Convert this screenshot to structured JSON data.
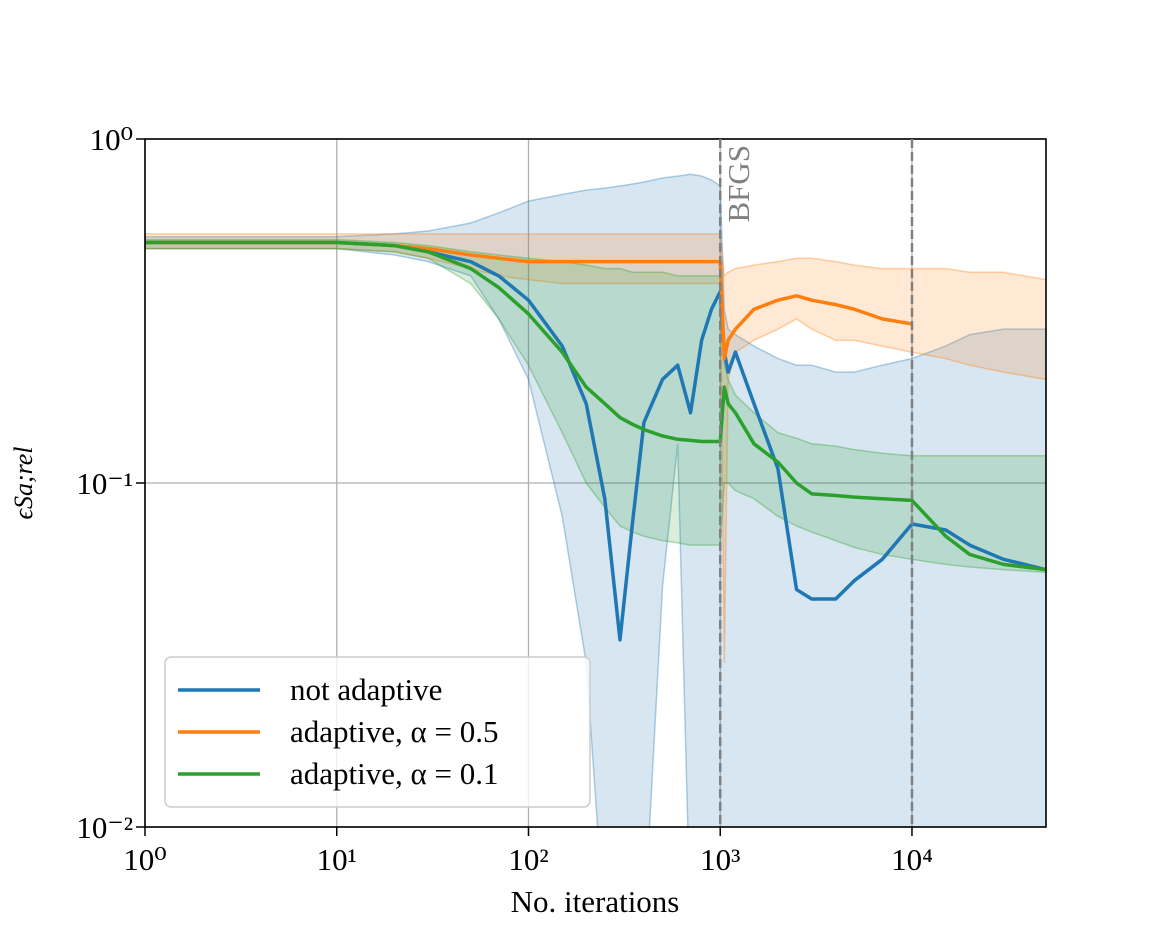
{
  "chart_data": {
    "type": "line",
    "log_x": true,
    "log_y": true,
    "grid": true,
    "legend": "lower left",
    "xlabel": "No. iterations",
    "ylabel": "ϵSa;rel",
    "xlim": [
      1,
      50000
    ],
    "ylim": [
      0.01,
      1
    ],
    "xticks": [
      {
        "value": 1,
        "label": "10⁰"
      },
      {
        "value": 10,
        "label": "10¹"
      },
      {
        "value": 100,
        "label": "10²"
      },
      {
        "value": 1000,
        "label": "10³"
      },
      {
        "value": 10000,
        "label": "10⁴"
      }
    ],
    "yticks": [
      {
        "value": 0.01,
        "label": "10⁻²"
      },
      {
        "value": 0.1,
        "label": "10⁻¹"
      },
      {
        "value": 1,
        "label": "10⁰"
      }
    ],
    "vlines": [
      1000,
      10000
    ],
    "annotation": {
      "text": "BFGS",
      "x": 1000
    },
    "x": [
      1,
      10,
      20,
      30,
      50,
      70,
      100,
      150,
      200,
      250,
      300,
      350,
      400,
      500,
      600,
      700,
      800,
      900,
      1000,
      1050,
      1100,
      1200,
      1500,
      2000,
      2500,
      3000,
      4000,
      5000,
      7000,
      10000,
      15000,
      20000,
      30000,
      50000
    ],
    "series": [
      {
        "name": "not adaptive",
        "color": "#1f77b4",
        "values": [
          0.5,
          0.5,
          0.49,
          0.47,
          0.44,
          0.4,
          0.34,
          0.25,
          0.17,
          0.09,
          0.035,
          0.078,
          0.15,
          0.2,
          0.22,
          0.16,
          0.26,
          0.32,
          0.36,
          0.24,
          0.21,
          0.24,
          0.17,
          0.11,
          0.049,
          0.046,
          0.046,
          0.052,
          0.06,
          0.076,
          0.073,
          0.066,
          0.06,
          0.056
        ],
        "upper": [
          0.52,
          0.52,
          0.53,
          0.54,
          0.57,
          0.61,
          0.66,
          0.69,
          0.71,
          0.72,
          0.73,
          0.74,
          0.75,
          0.77,
          0.78,
          0.79,
          0.78,
          0.76,
          0.73,
          0.32,
          0.28,
          0.27,
          0.25,
          0.23,
          0.22,
          0.22,
          0.21,
          0.21,
          0.22,
          0.23,
          0.25,
          0.27,
          0.28,
          0.28
        ],
        "lower": [
          0.48,
          0.48,
          0.46,
          0.44,
          0.4,
          0.3,
          0.2,
          0.08,
          0.03,
          0.005,
          0.005,
          0.005,
          0.005,
          0.05,
          0.13,
          0.005,
          0.005,
          0.005,
          0.005,
          0.005,
          0.005,
          0.005,
          0.005,
          0.005,
          0.005,
          0.005,
          0.005,
          0.005,
          0.005,
          0.005,
          0.005,
          0.005,
          0.005,
          0.005
        ]
      },
      {
        "name": "adaptive, α = 0.5",
        "color": "#ff7f0e",
        "values": [
          0.5,
          0.5,
          0.49,
          0.48,
          0.46,
          0.45,
          0.44,
          0.44,
          0.44,
          0.44,
          0.44,
          0.44,
          0.44,
          0.44,
          0.44,
          0.44,
          0.44,
          0.44,
          0.44,
          0.23,
          0.26,
          0.28,
          0.32,
          0.34,
          0.35,
          0.34,
          0.33,
          0.32,
          0.3,
          0.29,
          null,
          null,
          null,
          null
        ],
        "upper": [
          0.53,
          0.53,
          0.53,
          0.53,
          0.53,
          0.53,
          0.53,
          0.53,
          0.53,
          0.53,
          0.53,
          0.53,
          0.53,
          0.53,
          0.53,
          0.53,
          0.53,
          0.53,
          0.53,
          0.4,
          0.41,
          0.42,
          0.43,
          0.44,
          0.45,
          0.45,
          0.44,
          0.43,
          0.42,
          0.42,
          0.42,
          0.41,
          0.41,
          0.39
        ],
        "lower": [
          0.48,
          0.48,
          0.47,
          0.45,
          0.42,
          0.4,
          0.39,
          0.38,
          0.38,
          0.38,
          0.38,
          0.38,
          0.38,
          0.38,
          0.38,
          0.38,
          0.38,
          0.38,
          0.38,
          0.03,
          0.2,
          0.24,
          0.26,
          0.28,
          0.3,
          0.28,
          0.26,
          0.26,
          0.25,
          0.24,
          0.23,
          0.22,
          0.21,
          0.2
        ]
      },
      {
        "name": "adaptive, α = 0.1",
        "color": "#2ca02c",
        "values": [
          0.5,
          0.5,
          0.49,
          0.47,
          0.42,
          0.37,
          0.31,
          0.24,
          0.19,
          0.17,
          0.155,
          0.148,
          0.143,
          0.137,
          0.134,
          0.133,
          0.132,
          0.132,
          0.132,
          0.19,
          0.17,
          0.16,
          0.13,
          0.115,
          0.1,
          0.093,
          0.092,
          0.091,
          0.09,
          0.089,
          0.07,
          0.062,
          0.058,
          0.056
        ],
        "upper": [
          0.51,
          0.51,
          0.5,
          0.49,
          0.47,
          0.46,
          0.45,
          0.44,
          0.43,
          0.42,
          0.42,
          0.41,
          0.41,
          0.41,
          0.4,
          0.4,
          0.4,
          0.4,
          0.4,
          0.22,
          0.2,
          0.18,
          0.16,
          0.14,
          0.135,
          0.13,
          0.128,
          0.125,
          0.122,
          0.12,
          0.12,
          0.12,
          0.12,
          0.12
        ],
        "lower": [
          0.48,
          0.48,
          0.47,
          0.45,
          0.38,
          0.3,
          0.22,
          0.14,
          0.1,
          0.085,
          0.075,
          0.072,
          0.07,
          0.068,
          0.067,
          0.066,
          0.066,
          0.066,
          0.066,
          0.1,
          0.1,
          0.095,
          0.09,
          0.08,
          0.075,
          0.072,
          0.068,
          0.065,
          0.062,
          0.06,
          0.058,
          0.057,
          0.056,
          0.055
        ]
      }
    ]
  }
}
